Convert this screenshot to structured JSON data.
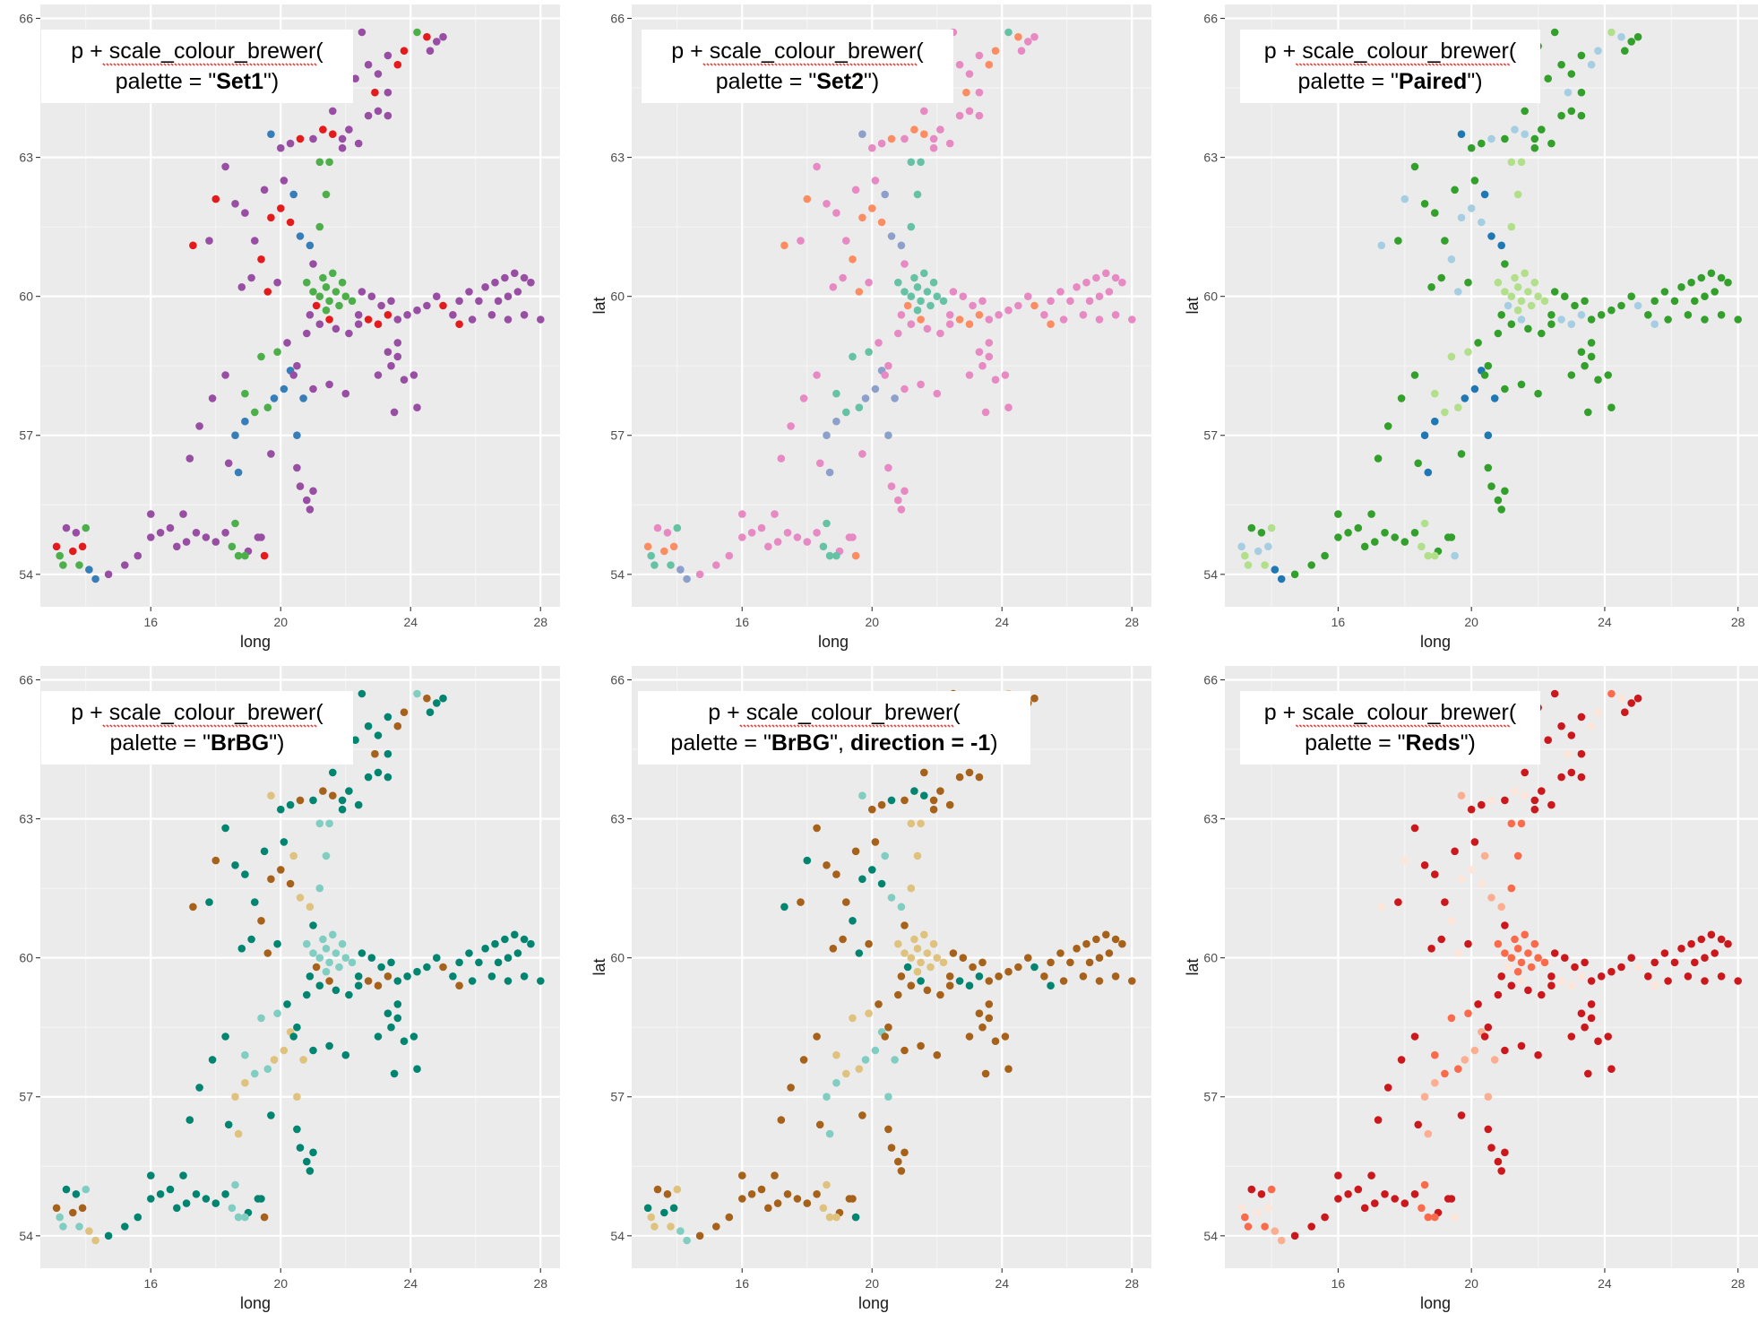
{
  "chart_data": [
    {
      "type": "scatter",
      "palette": "Set1",
      "annotation": {
        "line1": "p + scale_colour_brewer(",
        "line2_pre": "palette = \"",
        "line2_bold": "Set1",
        "line2_post": "\")"
      },
      "xlabel": "long",
      "ylabel": "",
      "x_ticks": [
        "16",
        "20",
        "24",
        "28"
      ],
      "y_ticks": [
        "54",
        "57",
        "60",
        "63",
        "66"
      ],
      "xlim": [
        12.6,
        28.6
      ],
      "ylim": [
        53.3,
        66.3
      ],
      "colors": [
        "#e41a1c",
        "#377eb8",
        "#4daf4a",
        "#984ea3"
      ]
    },
    {
      "type": "scatter",
      "palette": "Set2",
      "annotation": {
        "line1": "p + scale_colour_brewer(",
        "line2_pre": "palette = \"",
        "line2_bold": "Set2",
        "line2_post": "\")"
      },
      "xlabel": "long",
      "ylabel": "lat",
      "x_ticks": [
        "16",
        "20",
        "24",
        "28"
      ],
      "y_ticks": [
        "54",
        "57",
        "60",
        "63",
        "66"
      ],
      "xlim": [
        12.6,
        28.6
      ],
      "ylim": [
        53.3,
        66.3
      ],
      "colors": [
        "#fc8d62",
        "#8da0cb",
        "#66c2a5",
        "#e78ac3"
      ]
    },
    {
      "type": "scatter",
      "palette": "Paired",
      "annotation": {
        "line1": "p + scale_colour_brewer(",
        "line2_pre": "palette = \"",
        "line2_bold": "Paired",
        "line2_post": "\")"
      },
      "xlabel": "long",
      "ylabel": "lat",
      "x_ticks": [
        "16",
        "20",
        "24",
        "28"
      ],
      "y_ticks": [
        "54",
        "57",
        "60",
        "63",
        "66"
      ],
      "xlim": [
        12.6,
        28.6
      ],
      "ylim": [
        53.3,
        66.3
      ],
      "colors": [
        "#a6cee3",
        "#1f78b4",
        "#b2df8a",
        "#33a02c"
      ]
    },
    {
      "type": "scatter",
      "palette": "BrBG",
      "annotation": {
        "line1": "p + scale_colour_brewer(",
        "line2_pre": "palette = \"",
        "line2_bold": "BrBG",
        "line2_post": "\")"
      },
      "xlabel": "long",
      "ylabel": "",
      "x_ticks": [
        "16",
        "20",
        "24",
        "28"
      ],
      "y_ticks": [
        "54",
        "57",
        "60",
        "63",
        "66"
      ],
      "xlim": [
        12.6,
        28.6
      ],
      "ylim": [
        53.3,
        66.3
      ],
      "colors": [
        "#a6611a",
        "#dfc27d",
        "#80cdc1",
        "#018571"
      ]
    },
    {
      "type": "scatter",
      "palette": "BrBG reversed",
      "annotation": {
        "line1": "p + scale_colour_brewer(",
        "line2_pre": "palette = \"",
        "line2_bold": "BrBG",
        "line2_mid": "\", ",
        "line2_bold2": "direction = -1",
        "line2_post": ")"
      },
      "xlabel": "long",
      "ylabel": "lat",
      "x_ticks": [
        "16",
        "20",
        "24",
        "28"
      ],
      "y_ticks": [
        "54",
        "57",
        "60",
        "63",
        "66"
      ],
      "xlim": [
        12.6,
        28.6
      ],
      "ylim": [
        53.3,
        66.3
      ],
      "colors": [
        "#018571",
        "#80cdc1",
        "#dfc27d",
        "#a6611a"
      ]
    },
    {
      "type": "scatter",
      "palette": "Reds",
      "annotation": {
        "line1": "p + scale_colour_brewer(",
        "line2_pre": "palette = \"",
        "line2_bold": "Reds",
        "line2_post": "\")"
      },
      "xlabel": "long",
      "ylabel": "lat",
      "x_ticks": [
        "16",
        "20",
        "24",
        "28"
      ],
      "y_ticks": [
        "54",
        "57",
        "60",
        "63",
        "66"
      ],
      "xlim": [
        12.6,
        28.6
      ],
      "ylim": [
        53.3,
        66.3
      ],
      "colors": [
        "#fee5d9",
        "#fcae91",
        "#fb6a4a",
        "#cb181d"
      ]
    }
  ],
  "points": [
    [
      13.1,
      54.6,
      0
    ],
    [
      13.2,
      54.4,
      2
    ],
    [
      13.3,
      54.2,
      2
    ],
    [
      13.6,
      54.5,
      0
    ],
    [
      13.9,
      54.6,
      0
    ],
    [
      13.7,
      54.9,
      3
    ],
    [
      13.4,
      55.0,
      3
    ],
    [
      14.0,
      55.0,
      2
    ],
    [
      14.1,
      54.1,
      1
    ],
    [
      14.3,
      53.9,
      1
    ],
    [
      14.7,
      54.0,
      3
    ],
    [
      13.8,
      54.2,
      2
    ],
    [
      15.2,
      54.2,
      3
    ],
    [
      15.6,
      54.4,
      3
    ],
    [
      16.0,
      54.8,
      3
    ],
    [
      16.3,
      54.9,
      3
    ],
    [
      16.6,
      55.0,
      3
    ],
    [
      16.8,
      54.6,
      3
    ],
    [
      17.1,
      54.7,
      3
    ],
    [
      17.4,
      54.9,
      3
    ],
    [
      17.7,
      54.8,
      3
    ],
    [
      18.0,
      54.7,
      3
    ],
    [
      18.3,
      54.9,
      3
    ],
    [
      18.5,
      54.6,
      2
    ],
    [
      18.7,
      54.4,
      2
    ],
    [
      19.0,
      54.5,
      3
    ],
    [
      19.3,
      54.8,
      3
    ],
    [
      19.5,
      54.4,
      0
    ],
    [
      16.0,
      55.3,
      3
    ],
    [
      17.0,
      55.3,
      3
    ],
    [
      18.6,
      55.1,
      2
    ],
    [
      19.4,
      54.8,
      3
    ],
    [
      18.9,
      54.4,
      2
    ],
    [
      17.2,
      56.5,
      3
    ],
    [
      17.5,
      57.2,
      3
    ],
    [
      17.9,
      57.8,
      3
    ],
    [
      18.3,
      58.3,
      3
    ],
    [
      18.6,
      57.0,
      1
    ],
    [
      18.9,
      57.3,
      1
    ],
    [
      19.2,
      57.5,
      2
    ],
    [
      19.6,
      57.6,
      2
    ],
    [
      19.8,
      57.8,
      1
    ],
    [
      20.1,
      58.0,
      1
    ],
    [
      20.3,
      58.4,
      1
    ],
    [
      20.5,
      57.0,
      1
    ],
    [
      19.7,
      56.6,
      3
    ],
    [
      18.7,
      56.2,
      1
    ],
    [
      18.4,
      56.4,
      3
    ],
    [
      18.9,
      57.9,
      2
    ],
    [
      19.4,
      58.7,
      2
    ],
    [
      19.9,
      58.8,
      2
    ],
    [
      20.2,
      59.0,
      3
    ],
    [
      20.5,
      58.5,
      3
    ],
    [
      20.8,
      59.2,
      3
    ],
    [
      21.0,
      58.0,
      3
    ],
    [
      20.7,
      57.8,
      1
    ],
    [
      20.4,
      58.3,
      3
    ],
    [
      20.6,
      55.9,
      3
    ],
    [
      20.8,
      55.6,
      3
    ],
    [
      20.9,
      55.4,
      3
    ],
    [
      21.0,
      55.8,
      3
    ],
    [
      20.5,
      56.3,
      3
    ],
    [
      17.3,
      61.1,
      0
    ],
    [
      17.8,
      61.2,
      3
    ],
    [
      18.0,
      62.1,
      0
    ],
    [
      18.3,
      62.8,
      3
    ],
    [
      18.6,
      62.0,
      3
    ],
    [
      18.9,
      61.8,
      3
    ],
    [
      19.2,
      61.2,
      3
    ],
    [
      19.4,
      60.8,
      0
    ],
    [
      19.1,
      60.4,
      3
    ],
    [
      18.8,
      60.2,
      3
    ],
    [
      19.6,
      60.1,
      0
    ],
    [
      19.9,
      60.3,
      3
    ],
    [
      19.7,
      61.7,
      0
    ],
    [
      19.5,
      62.3,
      3
    ],
    [
      19.7,
      63.5,
      1
    ],
    [
      20.0,
      63.2,
      3
    ],
    [
      20.3,
      63.3,
      3
    ],
    [
      20.6,
      63.4,
      0
    ],
    [
      20.1,
      62.5,
      3
    ],
    [
      20.4,
      62.2,
      1
    ],
    [
      20.0,
      61.9,
      0
    ],
    [
      20.3,
      61.6,
      0
    ],
    [
      20.6,
      61.3,
      1
    ],
    [
      20.9,
      61.1,
      1
    ],
    [
      21.0,
      60.7,
      3
    ],
    [
      20.8,
      60.3,
      2
    ],
    [
      21.0,
      60.1,
      2
    ],
    [
      21.2,
      60.0,
      2
    ],
    [
      21.4,
      60.2,
      2
    ],
    [
      21.5,
      59.9,
      2
    ],
    [
      21.7,
      60.1,
      2
    ],
    [
      21.9,
      60.3,
      2
    ],
    [
      21.3,
      60.4,
      2
    ],
    [
      21.6,
      60.5,
      2
    ],
    [
      21.8,
      59.8,
      2
    ],
    [
      22.0,
      60.0,
      2
    ],
    [
      22.2,
      59.9,
      2
    ],
    [
      21.4,
      59.7,
      2
    ],
    [
      21.1,
      59.8,
      0
    ],
    [
      20.9,
      59.6,
      3
    ],
    [
      21.2,
      59.4,
      3
    ],
    [
      21.5,
      59.5,
      0
    ],
    [
      21.7,
      59.3,
      3
    ],
    [
      22.4,
      59.6,
      3
    ],
    [
      22.7,
      59.5,
      0
    ],
    [
      23.0,
      59.4,
      0
    ],
    [
      23.3,
      59.6,
      0
    ],
    [
      23.6,
      59.5,
      3
    ],
    [
      23.9,
      59.6,
      3
    ],
    [
      24.2,
      59.7,
      3
    ],
    [
      24.5,
      59.8,
      3
    ],
    [
      24.8,
      60.0,
      3
    ],
    [
      25.0,
      59.8,
      0
    ],
    [
      25.3,
      59.6,
      3
    ],
    [
      25.5,
      59.9,
      3
    ],
    [
      25.8,
      60.1,
      3
    ],
    [
      26.1,
      59.9,
      3
    ],
    [
      26.3,
      60.2,
      3
    ],
    [
      26.6,
      60.3,
      3
    ],
    [
      26.9,
      60.4,
      3
    ],
    [
      27.2,
      60.5,
      3
    ],
    [
      27.5,
      60.4,
      3
    ],
    [
      27.7,
      60.3,
      3
    ],
    [
      27.3,
      60.1,
      3
    ],
    [
      27.0,
      60.0,
      3
    ],
    [
      26.7,
      59.9,
      3
    ],
    [
      26.5,
      59.6,
      3
    ],
    [
      27.0,
      59.5,
      3
    ],
    [
      27.5,
      59.6,
      3
    ],
    [
      28.0,
      59.5,
      3
    ],
    [
      25.9,
      59.5,
      3
    ],
    [
      25.5,
      59.4,
      0
    ],
    [
      22.5,
      60.1,
      3
    ],
    [
      22.8,
      60.0,
      3
    ],
    [
      23.1,
      59.8,
      3
    ],
    [
      23.4,
      59.9,
      3
    ],
    [
      22.1,
      59.2,
      3
    ],
    [
      22.4,
      59.4,
      3
    ],
    [
      23.3,
      58.8,
      3
    ],
    [
      23.6,
      58.7,
      3
    ],
    [
      23.4,
      58.5,
      3
    ],
    [
      23.6,
      59.0,
      3
    ],
    [
      23.0,
      58.3,
      3
    ],
    [
      23.8,
      58.2,
      3
    ],
    [
      24.1,
      58.3,
      3
    ],
    [
      24.2,
      57.6,
      3
    ],
    [
      23.5,
      57.5,
      3
    ],
    [
      22.0,
      57.9,
      3
    ],
    [
      21.5,
      58.1,
      3
    ],
    [
      21.2,
      61.5,
      2
    ],
    [
      21.4,
      62.2,
      2
    ],
    [
      21.2,
      62.9,
      2
    ],
    [
      21.5,
      62.9,
      2
    ],
    [
      21.0,
      63.4,
      3
    ],
    [
      21.3,
      63.6,
      0
    ],
    [
      21.6,
      63.5,
      0
    ],
    [
      21.9,
      63.4,
      3
    ],
    [
      22.1,
      63.6,
      3
    ],
    [
      22.4,
      63.3,
      3
    ],
    [
      22.7,
      63.9,
      3
    ],
    [
      23.0,
      64.0,
      3
    ],
    [
      23.3,
      63.9,
      3
    ],
    [
      22.9,
      64.4,
      0
    ],
    [
      23.3,
      64.4,
      3
    ],
    [
      23.0,
      64.8,
      3
    ],
    [
      23.3,
      65.2,
      3
    ],
    [
      23.6,
      65.0,
      0
    ],
    [
      23.8,
      65.3,
      0
    ],
    [
      22.7,
      65.0,
      3
    ],
    [
      22.5,
      65.7,
      3
    ],
    [
      22.0,
      65.4,
      3
    ],
    [
      21.8,
      65.2,
      3
    ],
    [
      22.3,
      64.7,
      3
    ],
    [
      21.6,
      64.0,
      3
    ],
    [
      21.9,
      63.2,
      3
    ],
    [
      24.2,
      65.7,
      2
    ],
    [
      24.5,
      65.6,
      0
    ],
    [
      24.8,
      65.5,
      3
    ],
    [
      25.0,
      65.6,
      3
    ],
    [
      24.6,
      65.3,
      3
    ]
  ]
}
